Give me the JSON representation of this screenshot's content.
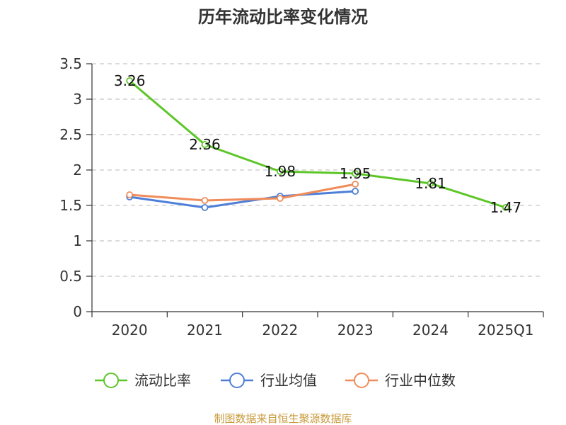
{
  "chart_data": {
    "type": "line",
    "title": "历年流动比率变化情况",
    "categories": [
      "2020",
      "2021",
      "2022",
      "2023",
      "2024",
      "2025Q1"
    ],
    "ylim": [
      0,
      3.5
    ],
    "yticks": [
      "0",
      "0.5",
      "1",
      "1.5",
      "2",
      "2.5",
      "3",
      "3.5"
    ],
    "grid": true,
    "legend_position": "bottom",
    "series": [
      {
        "name": "流动比率",
        "color": "#5cc627",
        "values": [
          3.26,
          2.36,
          1.98,
          1.95,
          1.81,
          1.47
        ],
        "labels": [
          "3.26",
          "2.36",
          "1.98",
          "1.95",
          "1.81",
          "1.47"
        ]
      },
      {
        "name": "行业均值",
        "color": "#4e7fd8",
        "values": [
          1.62,
          1.47,
          1.63,
          1.7,
          null,
          null
        ]
      },
      {
        "name": "行业中位数",
        "color": "#f08c5a",
        "values": [
          1.65,
          1.57,
          1.6,
          1.8,
          null,
          null
        ]
      }
    ],
    "source": "制图数据来自恒生聚源数据库"
  }
}
